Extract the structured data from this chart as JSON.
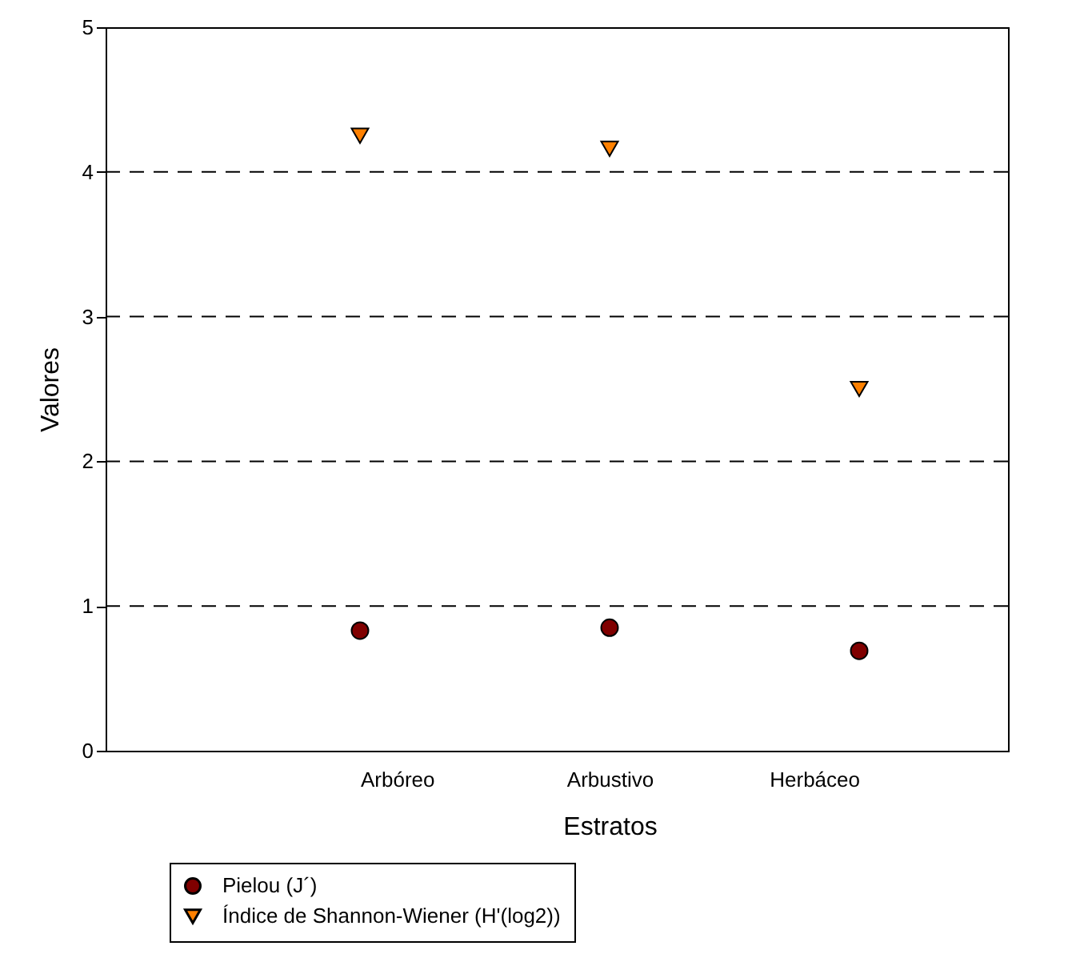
{
  "chart_data": {
    "type": "scatter",
    "xlabel": "Estratos",
    "ylabel": "Valores",
    "categories": [
      "Arbóreo",
      "Arbustivo",
      "Herbáceo"
    ],
    "series": [
      {
        "name": "Pielou (J´)",
        "color": "#800000",
        "marker": "circle",
        "values": [
          0.83,
          0.85,
          0.69
        ]
      },
      {
        "name": "Índice de Shannon-Wiener (H'(log2))",
        "color": "#ff8000",
        "marker": "triangle",
        "values": [
          4.25,
          4.16,
          2.5
        ]
      }
    ],
    "ylim": [
      0,
      5
    ],
    "yticks": [
      0,
      1,
      2,
      3,
      4,
      5
    ],
    "grid": "y",
    "legend": "bottom left"
  }
}
